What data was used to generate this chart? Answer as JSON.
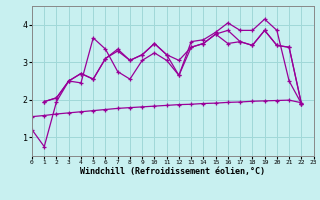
{
  "background_color": "#c8f0f0",
  "grid_color": "#a0d8d8",
  "line_color": "#990099",
  "xlabel": "Windchill (Refroidissement éolien,°C)",
  "xlim": [
    0,
    23
  ],
  "ylim": [
    0.5,
    4.5
  ],
  "yticks": [
    1,
    2,
    3,
    4
  ],
  "xticks": [
    0,
    1,
    2,
    3,
    4,
    5,
    6,
    7,
    8,
    9,
    10,
    11,
    12,
    13,
    14,
    15,
    16,
    17,
    18,
    19,
    20,
    21,
    22,
    23
  ],
  "series": [
    {
      "x": [
        0,
        1,
        2,
        3,
        4,
        5,
        6,
        7,
        8,
        9,
        10,
        11,
        12,
        13,
        14,
        15,
        16,
        17,
        18,
        19,
        20,
        21,
        22
      ],
      "y": [
        1.2,
        0.75,
        1.95,
        2.5,
        2.45,
        3.65,
        3.35,
        2.75,
        2.55,
        3.05,
        3.25,
        3.05,
        2.65,
        3.55,
        3.6,
        3.8,
        4.05,
        3.85,
        3.85,
        4.15,
        3.85,
        2.5,
        1.9
      ]
    },
    {
      "x": [
        1,
        2,
        3,
        4,
        5,
        6,
        7,
        8,
        9,
        10,
        11,
        12,
        13,
        14,
        15,
        16,
        17,
        18,
        19,
        20,
        21,
        22
      ],
      "y": [
        1.95,
        2.05,
        2.5,
        2.7,
        2.55,
        3.1,
        3.3,
        3.05,
        3.2,
        3.5,
        3.2,
        2.65,
        3.4,
        3.5,
        3.75,
        3.85,
        3.55,
        3.45,
        3.85,
        3.45,
        3.4,
        1.9
      ]
    },
    {
      "x": [
        1,
        2,
        3,
        4,
        5,
        6,
        7,
        8,
        9,
        10,
        11,
        12,
        13,
        14,
        15,
        16,
        17,
        18,
        19,
        20,
        21,
        22
      ],
      "y": [
        1.95,
        2.05,
        2.5,
        2.7,
        2.55,
        3.1,
        3.35,
        3.05,
        3.2,
        3.5,
        3.2,
        3.05,
        3.4,
        3.5,
        3.75,
        3.5,
        3.55,
        3.45,
        3.85,
        3.45,
        3.4,
        1.9
      ]
    },
    {
      "x": [
        0,
        1,
        2,
        3,
        4,
        5,
        6,
        7,
        8,
        9,
        10,
        11,
        12,
        13,
        14,
        15,
        16,
        17,
        18,
        19,
        20,
        21,
        22
      ],
      "y": [
        1.55,
        1.58,
        1.62,
        1.65,
        1.68,
        1.71,
        1.74,
        1.77,
        1.79,
        1.81,
        1.83,
        1.85,
        1.87,
        1.88,
        1.9,
        1.91,
        1.93,
        1.94,
        1.96,
        1.97,
        1.98,
        1.99,
        1.92
      ]
    }
  ]
}
